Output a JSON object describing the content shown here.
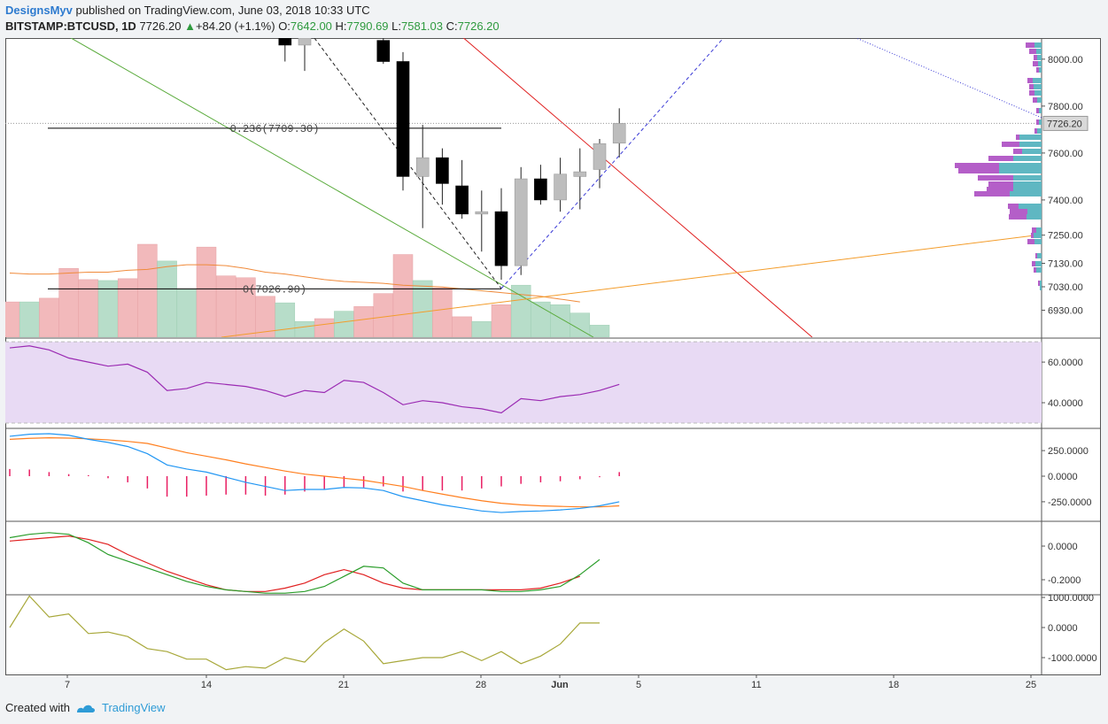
{
  "header": {
    "author": "DesignsMyv",
    "published_text": "published on TradingView.com, June 03, 2018 10:33 UTC",
    "symbol": "BITSTAMP:BTCUSD, 1D",
    "last": "7726.20",
    "change": "+84.20 (+1.1%)",
    "o_label": "O:",
    "o_value": "7642.00",
    "h_label": "H:",
    "h_value": "7790.69",
    "l_label": "L:",
    "l_value": "7581.03",
    "c_label": "C:",
    "c_value": "7726.20"
  },
  "footer": {
    "created_with": "Created with",
    "brand": "TradingView"
  },
  "colors": {
    "up_candle": "#bdbdbd",
    "down_candle": "#000000",
    "vol_up": "#b7ddc9",
    "vol_down": "#f2b9bb",
    "rsi": "#9b2bb3",
    "rsi_band": "#e8daf4",
    "macd": "#2196f3",
    "signal": "#ff7f1f",
    "hist": "#e91e63",
    "green_line": "#2a9d2a",
    "red_line": "#e02020",
    "cci": "#a8a83a",
    "vp_buy": "#5fb7c2",
    "vp_sell": "#b45ec8"
  },
  "chart_data": {
    "type": "candlestick",
    "x_ticks": [
      {
        "label": "7",
        "day": 7
      },
      {
        "label": "14",
        "day": 14
      },
      {
        "label": "21",
        "day": 21
      },
      {
        "label": "28",
        "day": 28
      },
      {
        "label": "Jun",
        "day": 32
      },
      {
        "label": "5",
        "day": 36
      },
      {
        "label": "11",
        "day": 42
      },
      {
        "label": "18",
        "day": 49
      },
      {
        "label": "25",
        "day": 56
      }
    ],
    "price_ticks": [
      "8000.00",
      "7800.00",
      "7600.00",
      "7400.00",
      "7250.00",
      "7130.00",
      "7030.00",
      "6930.00"
    ],
    "last_price_label": "7726.20",
    "candles": [
      {
        "day": 17,
        "o": 8090,
        "h": 8160,
        "l": 7990,
        "c": 8060
      },
      {
        "day": 18,
        "o": 8060,
        "h": 8130,
        "l": 7950,
        "c": 8090
      },
      {
        "day": 22,
        "o": 8080,
        "h": 8120,
        "l": 7980,
        "c": 7990
      },
      {
        "day": 23,
        "o": 7990,
        "h": 8030,
        "l": 7440,
        "c": 7500
      },
      {
        "day": 24,
        "o": 7500,
        "h": 7720,
        "l": 7280,
        "c": 7580
      },
      {
        "day": 25,
        "o": 7580,
        "h": 7620,
        "l": 7380,
        "c": 7470
      },
      {
        "day": 26,
        "o": 7460,
        "h": 7570,
        "l": 7320,
        "c": 7340
      },
      {
        "day": 27,
        "o": 7340,
        "h": 7440,
        "l": 7180,
        "c": 7350
      },
      {
        "day": 28,
        "o": 7350,
        "h": 7450,
        "l": 7060,
        "c": 7120
      },
      {
        "day": 29,
        "o": 7120,
        "h": 7540,
        "l": 7080,
        "c": 7490
      },
      {
        "day": 30,
        "o": 7490,
        "h": 7550,
        "l": 7380,
        "c": 7400
      },
      {
        "day": 31,
        "o": 7400,
        "h": 7580,
        "l": 7350,
        "c": 7510
      },
      {
        "day": 32,
        "o": 7500,
        "h": 7620,
        "l": 7360,
        "c": 7520
      },
      {
        "day": 33,
        "o": 7530,
        "h": 7660,
        "l": 7450,
        "c": 7640
      },
      {
        "day": 34,
        "o": 7642,
        "h": 7790.69,
        "l": 7581.03,
        "c": 7726.2
      }
    ],
    "fib": [
      {
        "label": "0.236(7709.30)",
        "price": 7709.3
      },
      {
        "label": "0(7026.90)",
        "price": 7026.9
      }
    ],
    "volume": [
      {
        "day": 3,
        "v": 0.38,
        "up": false
      },
      {
        "day": 4,
        "v": 0.38,
        "up": true
      },
      {
        "day": 5,
        "v": 0.42,
        "up": false
      },
      {
        "day": 6,
        "v": 0.74,
        "up": false
      },
      {
        "day": 7,
        "v": 0.62,
        "up": false
      },
      {
        "day": 8,
        "v": 0.61,
        "up": true
      },
      {
        "day": 9,
        "v": 0.63,
        "up": false
      },
      {
        "day": 10,
        "v": 1.0,
        "up": false
      },
      {
        "day": 11,
        "v": 0.82,
        "up": true
      },
      {
        "day": 12,
        "v": 0.52,
        "up": true
      },
      {
        "day": 13,
        "v": 0.97,
        "up": false
      },
      {
        "day": 14,
        "v": 0.66,
        "up": false
      },
      {
        "day": 15,
        "v": 0.64,
        "up": false
      },
      {
        "day": 16,
        "v": 0.44,
        "up": false
      },
      {
        "day": 17,
        "v": 0.37,
        "up": true
      },
      {
        "day": 18,
        "v": 0.17,
        "up": true
      },
      {
        "day": 19,
        "v": 0.2,
        "up": false
      },
      {
        "day": 20,
        "v": 0.28,
        "up": true
      },
      {
        "day": 21,
        "v": 0.33,
        "up": false
      },
      {
        "day": 22,
        "v": 0.47,
        "up": false
      },
      {
        "day": 23,
        "v": 0.89,
        "up": false
      },
      {
        "day": 24,
        "v": 0.61,
        "up": true
      },
      {
        "day": 25,
        "v": 0.53,
        "up": false
      },
      {
        "day": 26,
        "v": 0.22,
        "up": false
      },
      {
        "day": 27,
        "v": 0.17,
        "up": true
      },
      {
        "day": 28,
        "v": 0.35,
        "up": false
      },
      {
        "day": 29,
        "v": 0.56,
        "up": true
      },
      {
        "day": 30,
        "v": 0.38,
        "up": true
      },
      {
        "day": 31,
        "v": 0.35,
        "up": true
      },
      {
        "day": 32,
        "v": 0.26,
        "up": true
      },
      {
        "day": 33,
        "v": 0.13,
        "up": true
      }
    ],
    "volume_ma": [
      0.69,
      0.68,
      0.68,
      0.69,
      0.7,
      0.7,
      0.72,
      0.73,
      0.76,
      0.78,
      0.78,
      0.77,
      0.74,
      0.7,
      0.68,
      0.65,
      0.62,
      0.6,
      0.59,
      0.58,
      0.56,
      0.55,
      0.54,
      0.52,
      0.5,
      0.48,
      0.46,
      0.44,
      0.41,
      0.38
    ],
    "rsi": {
      "ticks": [
        "60.0000",
        "40.0000"
      ],
      "band": [
        30,
        70
      ],
      "values": [
        [
          3,
          67
        ],
        [
          4,
          68
        ],
        [
          5,
          66
        ],
        [
          6,
          62
        ],
        [
          7,
          60
        ],
        [
          8,
          58
        ],
        [
          9,
          59
        ],
        [
          10,
          55
        ],
        [
          11,
          46
        ],
        [
          12,
          47
        ],
        [
          13,
          50
        ],
        [
          14,
          49
        ],
        [
          15,
          48
        ],
        [
          16,
          46
        ],
        [
          17,
          43
        ],
        [
          18,
          46
        ],
        [
          19,
          45
        ],
        [
          20,
          51
        ],
        [
          21,
          50
        ],
        [
          22,
          45
        ],
        [
          23,
          39
        ],
        [
          24,
          41
        ],
        [
          25,
          40
        ],
        [
          26,
          38
        ],
        [
          27,
          37
        ],
        [
          28,
          35
        ],
        [
          29,
          42
        ],
        [
          30,
          41
        ],
        [
          31,
          43
        ],
        [
          32,
          44
        ],
        [
          33,
          46
        ],
        [
          34,
          49
        ]
      ]
    },
    "macd": {
      "ticks": [
        "250.0000",
        "0.0000",
        "-250.0000"
      ],
      "macd": [
        [
          3,
          390
        ],
        [
          4,
          410
        ],
        [
          5,
          415
        ],
        [
          6,
          400
        ],
        [
          7,
          360
        ],
        [
          8,
          330
        ],
        [
          9,
          290
        ],
        [
          10,
          220
        ],
        [
          11,
          110
        ],
        [
          12,
          70
        ],
        [
          13,
          40
        ],
        [
          14,
          -10
        ],
        [
          15,
          -60
        ],
        [
          16,
          -100
        ],
        [
          17,
          -140
        ],
        [
          18,
          -130
        ],
        [
          19,
          -130
        ],
        [
          20,
          -110
        ],
        [
          21,
          -115
        ],
        [
          22,
          -140
        ],
        [
          23,
          -200
        ],
        [
          24,
          -240
        ],
        [
          25,
          -280
        ],
        [
          26,
          -310
        ],
        [
          27,
          -340
        ],
        [
          28,
          -355
        ],
        [
          29,
          -345
        ],
        [
          30,
          -340
        ],
        [
          31,
          -330
        ],
        [
          32,
          -315
        ],
        [
          33,
          -290
        ],
        [
          34,
          -250
        ]
      ],
      "signal": [
        [
          3,
          360
        ],
        [
          4,
          370
        ],
        [
          5,
          375
        ],
        [
          6,
          372
        ],
        [
          7,
          365
        ],
        [
          8,
          355
        ],
        [
          9,
          340
        ],
        [
          10,
          320
        ],
        [
          11,
          275
        ],
        [
          12,
          230
        ],
        [
          13,
          195
        ],
        [
          14,
          160
        ],
        [
          15,
          120
        ],
        [
          16,
          85
        ],
        [
          17,
          50
        ],
        [
          18,
          20
        ],
        [
          19,
          0
        ],
        [
          20,
          -20
        ],
        [
          21,
          -40
        ],
        [
          22,
          -70
        ],
        [
          23,
          -100
        ],
        [
          24,
          -140
        ],
        [
          25,
          -175
        ],
        [
          26,
          -210
        ],
        [
          27,
          -240
        ],
        [
          28,
          -265
        ],
        [
          29,
          -280
        ],
        [
          30,
          -290
        ],
        [
          31,
          -295
        ],
        [
          32,
          -300
        ],
        [
          33,
          -300
        ],
        [
          34,
          -290
        ]
      ],
      "hist": [
        [
          3,
          70
        ],
        [
          4,
          65
        ],
        [
          5,
          40
        ],
        [
          6,
          20
        ],
        [
          7,
          10
        ],
        [
          8,
          -20
        ],
        [
          9,
          -60
        ],
        [
          10,
          -120
        ],
        [
          11,
          -200
        ],
        [
          12,
          -200
        ],
        [
          13,
          -190
        ],
        [
          14,
          -180
        ],
        [
          15,
          -180
        ],
        [
          16,
          -190
        ],
        [
          17,
          -180
        ],
        [
          18,
          -150
        ],
        [
          19,
          -130
        ],
        [
          20,
          -110
        ],
        [
          21,
          -110
        ],
        [
          22,
          -100
        ],
        [
          23,
          -150
        ],
        [
          24,
          -140
        ],
        [
          25,
          -140
        ],
        [
          26,
          -140
        ],
        [
          27,
          -120
        ],
        [
          28,
          -100
        ],
        [
          29,
          -75
        ],
        [
          30,
          -60
        ],
        [
          31,
          -50
        ],
        [
          32,
          -30
        ],
        [
          33,
          -10
        ],
        [
          34,
          40
        ]
      ]
    },
    "osc": {
      "ticks": [
        "0.0000",
        "-0.2000"
      ],
      "green": [
        [
          3,
          0.05
        ],
        [
          4,
          0.07
        ],
        [
          5,
          0.08
        ],
        [
          6,
          0.07
        ],
        [
          7,
          0.02
        ],
        [
          8,
          -0.05
        ],
        [
          9,
          -0.09
        ],
        [
          10,
          -0.13
        ],
        [
          11,
          -0.17
        ],
        [
          12,
          -0.21
        ],
        [
          13,
          -0.24
        ],
        [
          14,
          -0.26
        ],
        [
          15,
          -0.27
        ],
        [
          16,
          -0.28
        ],
        [
          17,
          -0.28
        ],
        [
          18,
          -0.27
        ],
        [
          19,
          -0.24
        ],
        [
          20,
          -0.18
        ],
        [
          21,
          -0.12
        ],
        [
          22,
          -0.13
        ],
        [
          23,
          -0.22
        ],
        [
          24,
          -0.26
        ],
        [
          25,
          -0.26
        ],
        [
          26,
          -0.26
        ],
        [
          27,
          -0.26
        ],
        [
          28,
          -0.27
        ],
        [
          29,
          -0.27
        ],
        [
          30,
          -0.26
        ],
        [
          31,
          -0.24
        ],
        [
          32,
          -0.17
        ],
        [
          33,
          -0.08
        ]
      ],
      "red": [
        [
          3,
          0.03
        ],
        [
          4,
          0.04
        ],
        [
          5,
          0.05
        ],
        [
          6,
          0.06
        ],
        [
          7,
          0.04
        ],
        [
          8,
          0.01
        ],
        [
          9,
          -0.05
        ],
        [
          10,
          -0.1
        ],
        [
          11,
          -0.15
        ],
        [
          12,
          -0.19
        ],
        [
          13,
          -0.23
        ],
        [
          14,
          -0.26
        ],
        [
          15,
          -0.27
        ],
        [
          16,
          -0.27
        ],
        [
          17,
          -0.25
        ],
        [
          18,
          -0.22
        ],
        [
          19,
          -0.17
        ],
        [
          20,
          -0.14
        ],
        [
          21,
          -0.17
        ],
        [
          22,
          -0.22
        ],
        [
          23,
          -0.25
        ],
        [
          24,
          -0.26
        ],
        [
          25,
          -0.26
        ],
        [
          26,
          -0.26
        ],
        [
          27,
          -0.26
        ],
        [
          28,
          -0.26
        ],
        [
          29,
          -0.26
        ],
        [
          30,
          -0.25
        ],
        [
          31,
          -0.22
        ],
        [
          32,
          -0.18
        ]
      ]
    },
    "cci": {
      "ticks": [
        "1000.0000",
        "0.0000",
        "-1000.0000"
      ],
      "values": [
        [
          3,
          0
        ],
        [
          4,
          1050
        ],
        [
          5,
          350
        ],
        [
          6,
          450
        ],
        [
          7,
          -200
        ],
        [
          8,
          -150
        ],
        [
          9,
          -300
        ],
        [
          10,
          -700
        ],
        [
          11,
          -800
        ],
        [
          12,
          -1050
        ],
        [
          13,
          -1050
        ],
        [
          14,
          -1400
        ],
        [
          15,
          -1300
        ],
        [
          16,
          -1350
        ],
        [
          17,
          -1000
        ],
        [
          18,
          -1150
        ],
        [
          19,
          -500
        ],
        [
          20,
          -50
        ],
        [
          21,
          -450
        ],
        [
          22,
          -1200
        ],
        [
          23,
          -1100
        ],
        [
          24,
          -1000
        ],
        [
          25,
          -1000
        ],
        [
          26,
          -800
        ],
        [
          27,
          -1100
        ],
        [
          28,
          -800
        ],
        [
          29,
          -1200
        ],
        [
          30,
          -950
        ],
        [
          31,
          -550
        ],
        [
          32,
          150
        ],
        [
          33,
          150
        ]
      ]
    }
  }
}
